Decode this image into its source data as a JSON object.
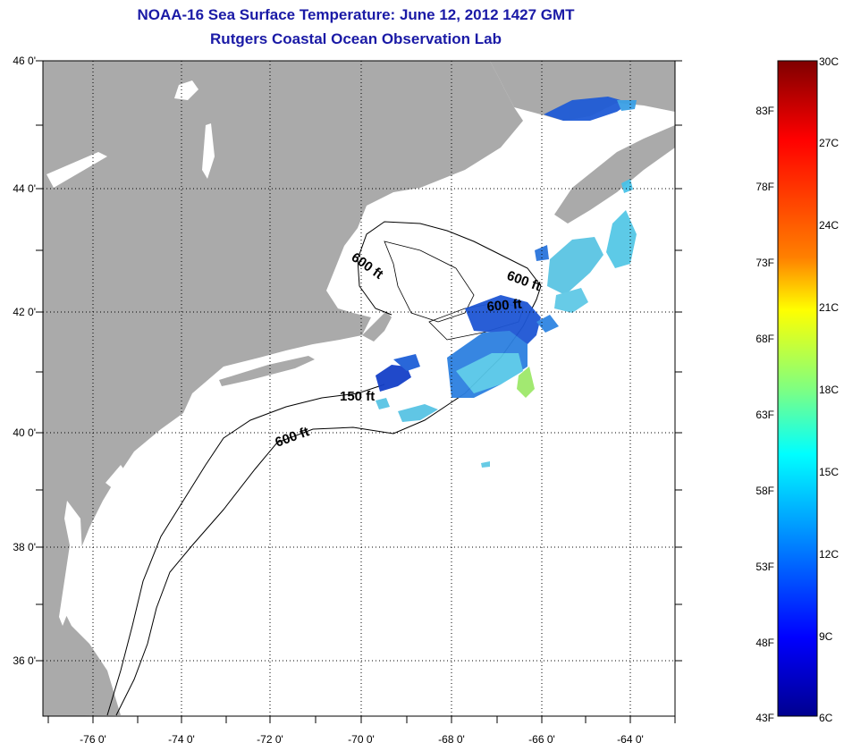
{
  "title": {
    "line1": "NOAA-16 Sea Surface Temperature:  June 12, 2012 1427 GMT",
    "line2": "Rutgers Coastal Ocean Observation Lab"
  },
  "map": {
    "colors": {
      "land": "#aaaaaa",
      "ocean": "#ffffff",
      "title": "#1a1aa6"
    },
    "lat_labels": [
      "46 0'",
      "44 0'",
      "42 0'",
      "40 0'",
      "38 0'",
      "36 0'"
    ],
    "lon_labels": [
      "-76 0'",
      "-74 0'",
      "-72 0'",
      "-70 0'",
      "-68 0'",
      "-66 0'",
      "-64 0'"
    ],
    "isobath_labels": [
      "600 ft",
      "600 ft",
      "600 ft",
      "150 ft",
      "600 ft"
    ]
  },
  "colorbar": {
    "fahrenheit_labels": [
      "83F",
      "78F",
      "73F",
      "68F",
      "63F",
      "58F",
      "53F",
      "48F",
      "43F"
    ],
    "celsius_labels": [
      "30C",
      "27C",
      "24C",
      "21C",
      "18C",
      "15C",
      "12C",
      "9C",
      "6C"
    ],
    "gradient": [
      "#7f0000",
      "#ff0000",
      "#ff8000",
      "#ffff00",
      "#80ff80",
      "#00ffff",
      "#0080ff",
      "#0000ff",
      "#00008f"
    ]
  }
}
